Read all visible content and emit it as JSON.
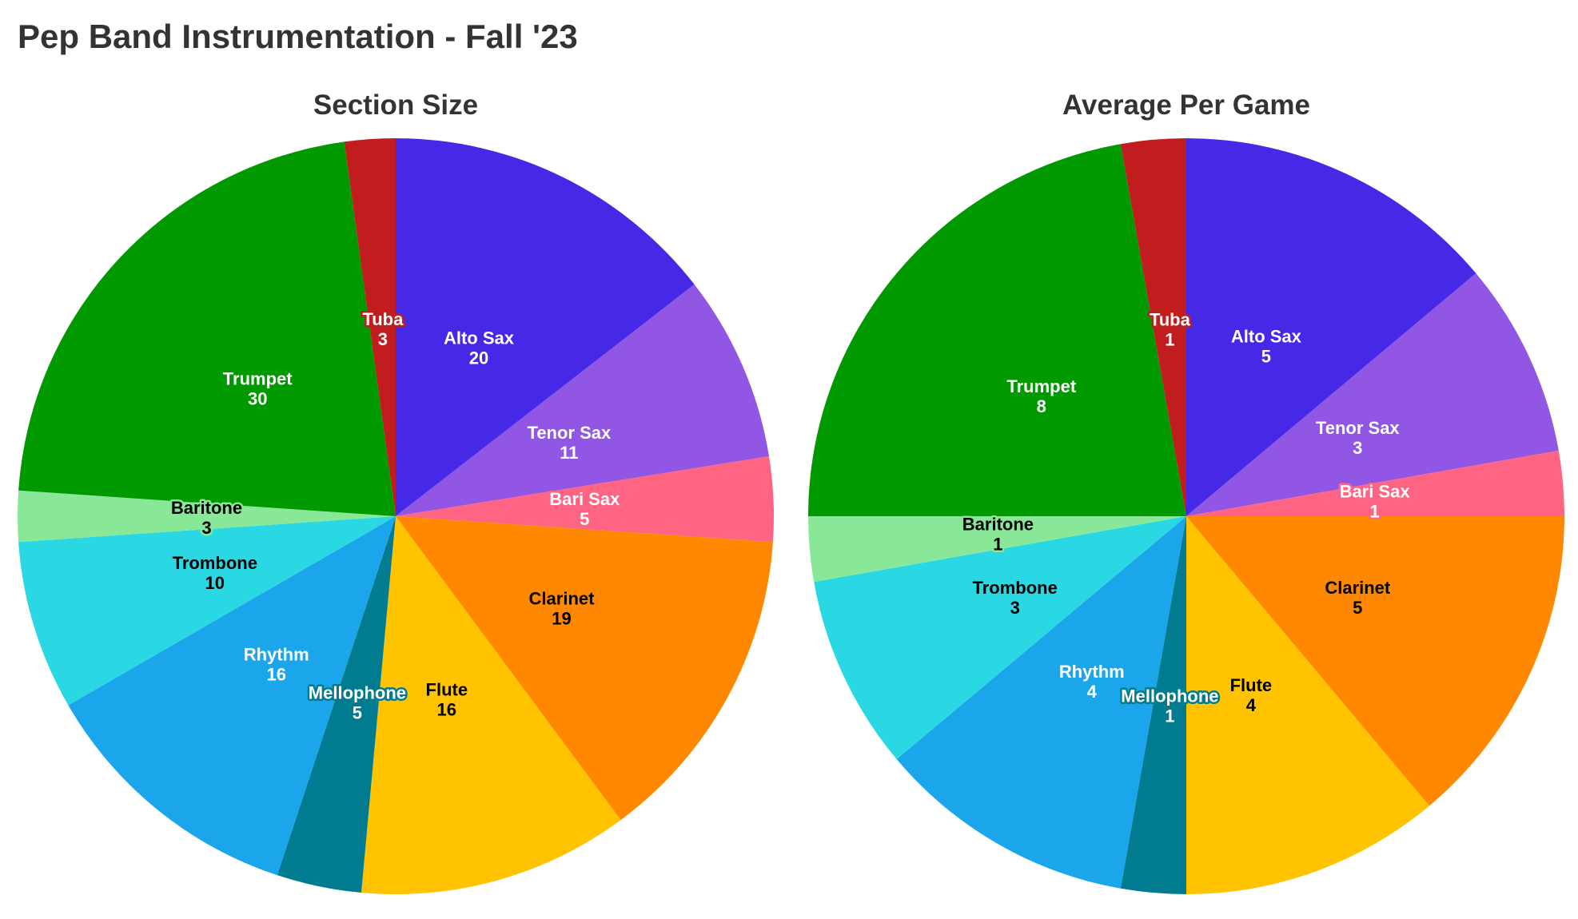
{
  "title": "Pep Band Instrumentation - Fall '23",
  "chart_data": [
    {
      "type": "pie",
      "title": "Section Size",
      "categories": [
        "Alto Sax",
        "Tenor Sax",
        "Bari Sax",
        "Clarinet",
        "Flute",
        "Mellophone",
        "Rhythm",
        "Trombone",
        "Baritone",
        "Trumpet",
        "Tuba"
      ],
      "values": [
        20,
        11,
        5,
        19,
        16,
        5,
        16,
        10,
        3,
        30,
        3
      ],
      "colors": [
        "#4529e6",
        "#9156e3",
        "#ff6482",
        "#ff8800",
        "#ffc300",
        "#007b8f",
        "#1ba6ec",
        "#2ad8e3",
        "#88e898",
        "#009900",
        "#c11d1f"
      ],
      "start": "12 o'clock",
      "direction": "clockwise"
    },
    {
      "type": "pie",
      "title": "Average Per Game",
      "categories": [
        "Alto Sax",
        "Tenor Sax",
        "Bari Sax",
        "Clarinet",
        "Flute",
        "Mellophone",
        "Rhythm",
        "Trombone",
        "Baritone",
        "Trumpet",
        "Tuba"
      ],
      "values": [
        5,
        3,
        1,
        5,
        4,
        1,
        4,
        3,
        1,
        8,
        1
      ],
      "colors": [
        "#4529e6",
        "#9156e3",
        "#ff6482",
        "#ff8800",
        "#ffc300",
        "#007b8f",
        "#1ba6ec",
        "#2ad8e3",
        "#88e898",
        "#009900",
        "#c11d1f"
      ],
      "start": "12 o'clock",
      "direction": "clockwise"
    }
  ]
}
